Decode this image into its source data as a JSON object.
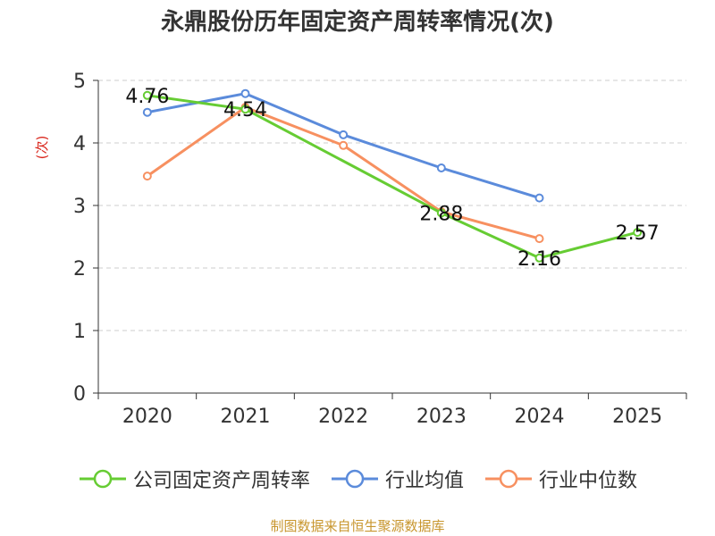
{
  "chart_data": {
    "type": "line",
    "title": "永鼎股份历年固定资产周转率情况(次)",
    "ylabel": "(次)",
    "xlabel": "",
    "categories": [
      "2020",
      "2021",
      "2022",
      "2023",
      "2024",
      "2025"
    ],
    "ylim": [
      0,
      5
    ],
    "yticks": [
      0,
      1,
      2,
      3,
      4,
      5
    ],
    "grid": true,
    "legend_position": "bottom",
    "series": [
      {
        "name": "公司固定资产周转率",
        "color": "#66cc33",
        "values": [
          4.76,
          4.54,
          null,
          2.88,
          2.16,
          2.57
        ],
        "labels": [
          "4.76",
          "4.54",
          "",
          "2.88",
          "2.16",
          "2.57"
        ]
      },
      {
        "name": "行业均值",
        "color": "#5b8bdb",
        "values": [
          4.49,
          4.79,
          4.13,
          3.6,
          3.12,
          null
        ]
      },
      {
        "name": "行业中位数",
        "color": "#f79060",
        "values": [
          3.47,
          4.57,
          3.96,
          2.9,
          2.47,
          null
        ]
      }
    ]
  },
  "source_note": "制图数据来自恒生聚源数据库"
}
